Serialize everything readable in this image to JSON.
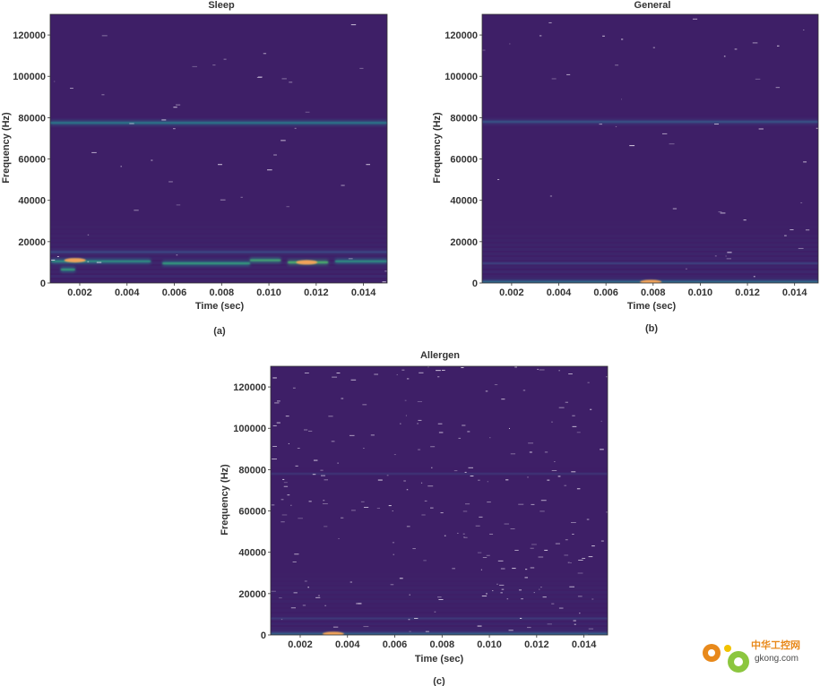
{
  "chart_data": [
    {
      "type": "heatmap",
      "title": "Sleep",
      "caption": "(a)",
      "xlabel": "Time (sec)",
      "ylabel": "Frequency (Hz)",
      "xlim": [
        0.00075,
        0.015
      ],
      "ylim": [
        0,
        130000
      ],
      "xticks": [
        0.002,
        0.004,
        0.006,
        0.008,
        0.01,
        0.012,
        0.014
      ],
      "xtick_labels": [
        "0.002",
        "0.004",
        "0.006",
        "0.008",
        "0.010",
        "0.012",
        "0.014"
      ],
      "yticks": [
        0,
        20000,
        40000,
        60000,
        80000,
        100000,
        120000
      ],
      "ytick_labels": [
        "0",
        "20000",
        "40000",
        "60000",
        "80000",
        "100000",
        "120000"
      ],
      "colormap": "viridis",
      "background": "#3e1f67",
      "bands": [
        {
          "y": 77500,
          "x": [
            0.00075,
            0.015
          ],
          "intensity": 0.35
        },
        {
          "y": 10500,
          "x": [
            0.0008,
            0.005
          ],
          "intensity": 0.45
        },
        {
          "y": 9500,
          "x": [
            0.0055,
            0.0092
          ],
          "intensity": 0.5
        },
        {
          "y": 11000,
          "x": [
            0.0092,
            0.0105
          ],
          "intensity": 0.55
        },
        {
          "y": 10000,
          "x": [
            0.0108,
            0.0125
          ],
          "intensity": 0.6
        },
        {
          "y": 10500,
          "x": [
            0.0128,
            0.015
          ],
          "intensity": 0.45
        },
        {
          "y": 15000,
          "x": [
            0.00075,
            0.015
          ],
          "intensity": 0.15
        },
        {
          "y": 6500,
          "x": [
            0.0012,
            0.0018
          ],
          "intensity": 0.5
        }
      ],
      "hotspots": [
        {
          "x": 0.0018,
          "y": 11000,
          "intensity": 0.9
        },
        {
          "x": 0.0116,
          "y": 10000,
          "intensity": 0.85
        }
      ]
    },
    {
      "type": "heatmap",
      "title": "General",
      "caption": "(b)",
      "xlabel": "Time (sec)",
      "ylabel": "Frequency (Hz)",
      "xlim": [
        0.00075,
        0.015
      ],
      "ylim": [
        0,
        130000
      ],
      "xticks": [
        0.002,
        0.004,
        0.006,
        0.008,
        0.01,
        0.012,
        0.014
      ],
      "xtick_labels": [
        "0.002",
        "0.004",
        "0.006",
        "0.008",
        "0.010",
        "0.012",
        "0.014"
      ],
      "yticks": [
        0,
        20000,
        40000,
        60000,
        80000,
        100000,
        120000
      ],
      "ytick_labels": [
        "0",
        "20000",
        "40000",
        "60000",
        "80000",
        "100000",
        "120000"
      ],
      "colormap": "viridis",
      "background": "#3e1f67",
      "bands": [
        {
          "y": 78000,
          "x": [
            0.00075,
            0.015
          ],
          "intensity": 0.2
        },
        {
          "y": 9500,
          "x": [
            0.00075,
            0.015
          ],
          "intensity": 0.12
        },
        {
          "y": 500,
          "x": [
            0.00075,
            0.015
          ],
          "intensity": 0.3
        }
      ],
      "hotspots": [
        {
          "x": 0.0079,
          "y": 500,
          "intensity": 0.9
        }
      ]
    },
    {
      "type": "heatmap",
      "title": "Allergen",
      "caption": "(c)",
      "xlabel": "Time (sec)",
      "ylabel": "Frequency (Hz)",
      "xlim": [
        0.00075,
        0.015
      ],
      "ylim": [
        0,
        130000
      ],
      "xticks": [
        0.002,
        0.004,
        0.006,
        0.008,
        0.01,
        0.012,
        0.014
      ],
      "xtick_labels": [
        "0.002",
        "0.004",
        "0.006",
        "0.008",
        "0.010",
        "0.012",
        "0.014"
      ],
      "yticks": [
        0,
        20000,
        40000,
        60000,
        80000,
        100000,
        120000
      ],
      "ytick_labels": [
        "0",
        "20000",
        "40000",
        "60000",
        "80000",
        "100000",
        "120000"
      ],
      "colormap": "viridis",
      "background": "#3e1f67",
      "bands": [
        {
          "y": 78000,
          "x": [
            0.00075,
            0.015
          ],
          "intensity": 0.08
        },
        {
          "y": 8000,
          "x": [
            0.00075,
            0.015
          ],
          "intensity": 0.1
        },
        {
          "y": 500,
          "x": [
            0.00075,
            0.015
          ],
          "intensity": 0.25
        }
      ],
      "hotspots": [
        {
          "x": 0.0034,
          "y": 500,
          "intensity": 0.9
        }
      ]
    }
  ],
  "watermark": {
    "text_cn": "中华工控网",
    "text_url": "gkong.com",
    "colors": {
      "gear_orange": "#e8891b",
      "gear_yellow": "#f2c200",
      "gear_green": "#8cc63f"
    }
  }
}
